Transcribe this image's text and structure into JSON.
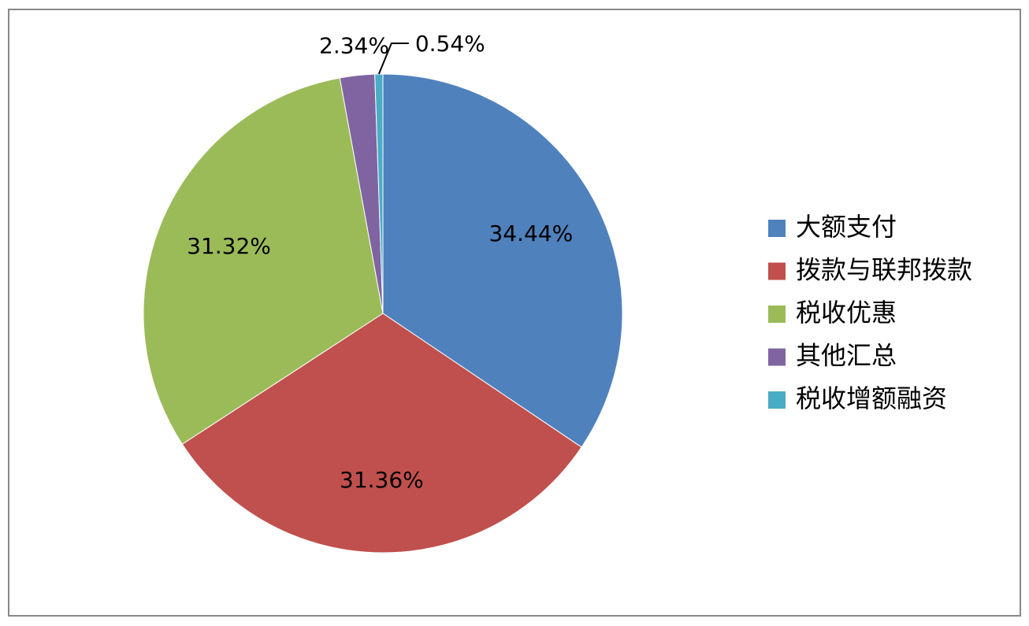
{
  "chart_data": {
    "type": "pie",
    "categories": [
      "大额支付",
      "拨款与联邦拨款",
      "税收优惠",
      "其他汇总",
      "税收增额融资"
    ],
    "values": [
      34.44,
      31.36,
      31.32,
      2.34,
      0.54
    ],
    "value_labels": [
      "34.44%",
      "31.36%",
      "31.32%",
      "2.34%",
      "0.54%"
    ],
    "colors": [
      "#4f81bd",
      "#c0504d",
      "#9bbb59",
      "#8064a2",
      "#4bacc6"
    ],
    "legend": "right"
  }
}
